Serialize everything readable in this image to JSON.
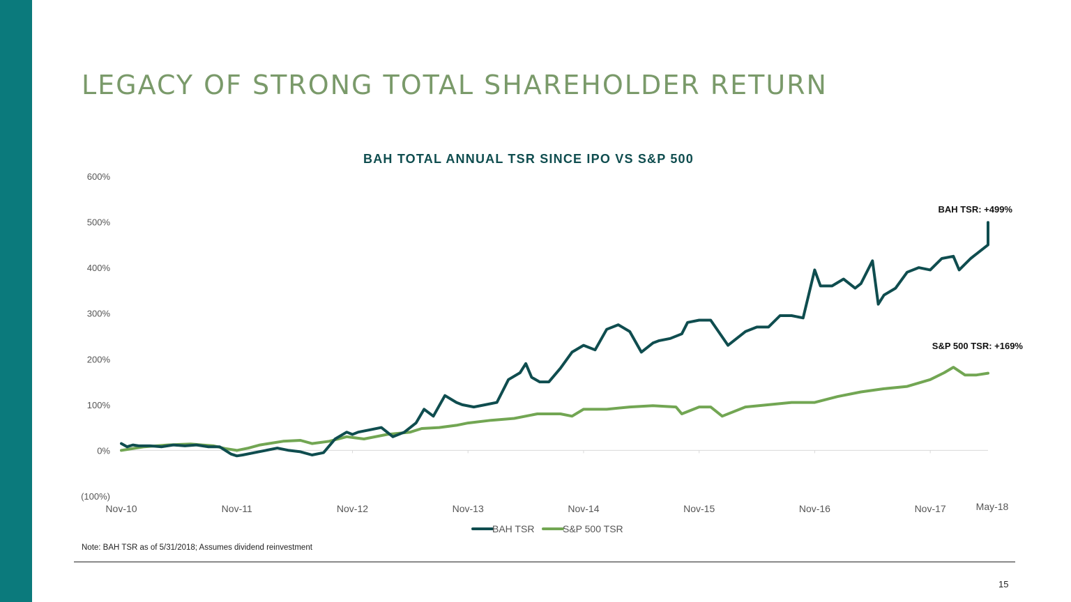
{
  "slide": {
    "title": "LEGACY OF STRONG TOTAL SHAREHOLDER RETURN",
    "footnote": "Note: BAH TSR as of 5/31/2018; Assumes dividend reinvestment",
    "page_number": "15",
    "accent_color": "#0b7a7c"
  },
  "chart_data": {
    "type": "line",
    "title": "BAH TOTAL ANNUAL TSR SINCE IPO VS S&P 500",
    "ylim": [
      -100,
      600
    ],
    "y_ticks": [
      -100,
      0,
      100,
      200,
      300,
      400,
      500,
      600
    ],
    "y_tick_labels": [
      "(100%)",
      "0%",
      "100%",
      "200%",
      "300%",
      "400%",
      "500%",
      "600%"
    ],
    "x_tick_labels": [
      "Nov-10",
      "Nov-11",
      "Nov-12",
      "Nov-13",
      "Nov-14",
      "Nov-15",
      "Nov-16",
      "Nov-17",
      "May-18"
    ],
    "x_domain": [
      0,
      7.5
    ],
    "series": [
      {
        "name": "BAH TSR",
        "color": "#0f4d4f",
        "x": [
          0,
          0.05,
          0.1,
          0.15,
          0.25,
          0.35,
          0.45,
          0.55,
          0.65,
          0.75,
          0.85,
          0.95,
          1.0,
          1.05,
          1.15,
          1.25,
          1.35,
          1.45,
          1.55,
          1.65,
          1.75,
          1.85,
          1.95,
          2.0,
          2.05,
          2.15,
          2.25,
          2.35,
          2.45,
          2.55,
          2.62,
          2.7,
          2.8,
          2.9,
          2.95,
          3.05,
          3.15,
          3.25,
          3.35,
          3.45,
          3.5,
          3.55,
          3.62,
          3.7,
          3.8,
          3.9,
          4.0,
          4.1,
          4.2,
          4.3,
          4.4,
          4.5,
          4.6,
          4.65,
          4.75,
          4.85,
          4.9,
          5.0,
          5.1,
          5.25,
          5.4,
          5.5,
          5.6,
          5.7,
          5.8,
          5.9,
          6.0,
          6.05,
          6.15,
          6.25,
          6.35,
          6.4,
          6.5,
          6.55,
          6.6,
          6.7,
          6.8,
          6.9,
          7.0,
          7.1,
          7.2,
          7.25,
          7.35,
          7.45,
          7.5,
          7.5
        ],
        "values": [
          15,
          8,
          12,
          10,
          10,
          8,
          12,
          10,
          12,
          8,
          8,
          -8,
          -12,
          -10,
          -5,
          0,
          5,
          0,
          -3,
          -10,
          -5,
          25,
          40,
          35,
          40,
          45,
          50,
          30,
          40,
          60,
          90,
          75,
          120,
          105,
          100,
          95,
          100,
          105,
          155,
          170,
          190,
          160,
          150,
          150,
          180,
          215,
          230,
          220,
          265,
          275,
          260,
          215,
          235,
          240,
          245,
          255,
          280,
          285,
          285,
          230,
          260,
          270,
          270,
          295,
          295,
          290,
          395,
          360,
          360,
          375,
          355,
          365,
          415,
          320,
          340,
          355,
          390,
          400,
          395,
          420,
          425,
          395,
          420,
          440,
          450,
          499
        ],
        "end_label": "BAH TSR: +499%"
      },
      {
        "name": "S&P 500 TSR",
        "color": "#72a653",
        "x": [
          0,
          0.2,
          0.4,
          0.6,
          0.7,
          0.8,
          0.9,
          1.0,
          1.1,
          1.2,
          1.4,
          1.55,
          1.65,
          1.8,
          1.95,
          2.1,
          2.3,
          2.5,
          2.6,
          2.75,
          2.9,
          3.0,
          3.2,
          3.4,
          3.6,
          3.8,
          3.9,
          4.0,
          4.2,
          4.4,
          4.6,
          4.8,
          4.85,
          5.0,
          5.1,
          5.2,
          5.4,
          5.6,
          5.8,
          6.0,
          6.2,
          6.4,
          6.6,
          6.8,
          7.0,
          7.12,
          7.2,
          7.3,
          7.4,
          7.5
        ],
        "values": [
          0,
          8,
          12,
          14,
          12,
          10,
          4,
          0,
          5,
          12,
          20,
          22,
          15,
          20,
          30,
          25,
          35,
          40,
          48,
          50,
          55,
          60,
          66,
          70,
          80,
          80,
          75,
          90,
          90,
          95,
          98,
          95,
          80,
          95,
          95,
          75,
          95,
          100,
          105,
          105,
          118,
          128,
          135,
          140,
          155,
          170,
          182,
          165,
          165,
          169
        ],
        "end_label": "S&P 500 TSR: +169%"
      }
    ],
    "legend": [
      "BAH TSR",
      "S&P 500 TSR"
    ],
    "grid": false,
    "legend_position": "bottom"
  }
}
